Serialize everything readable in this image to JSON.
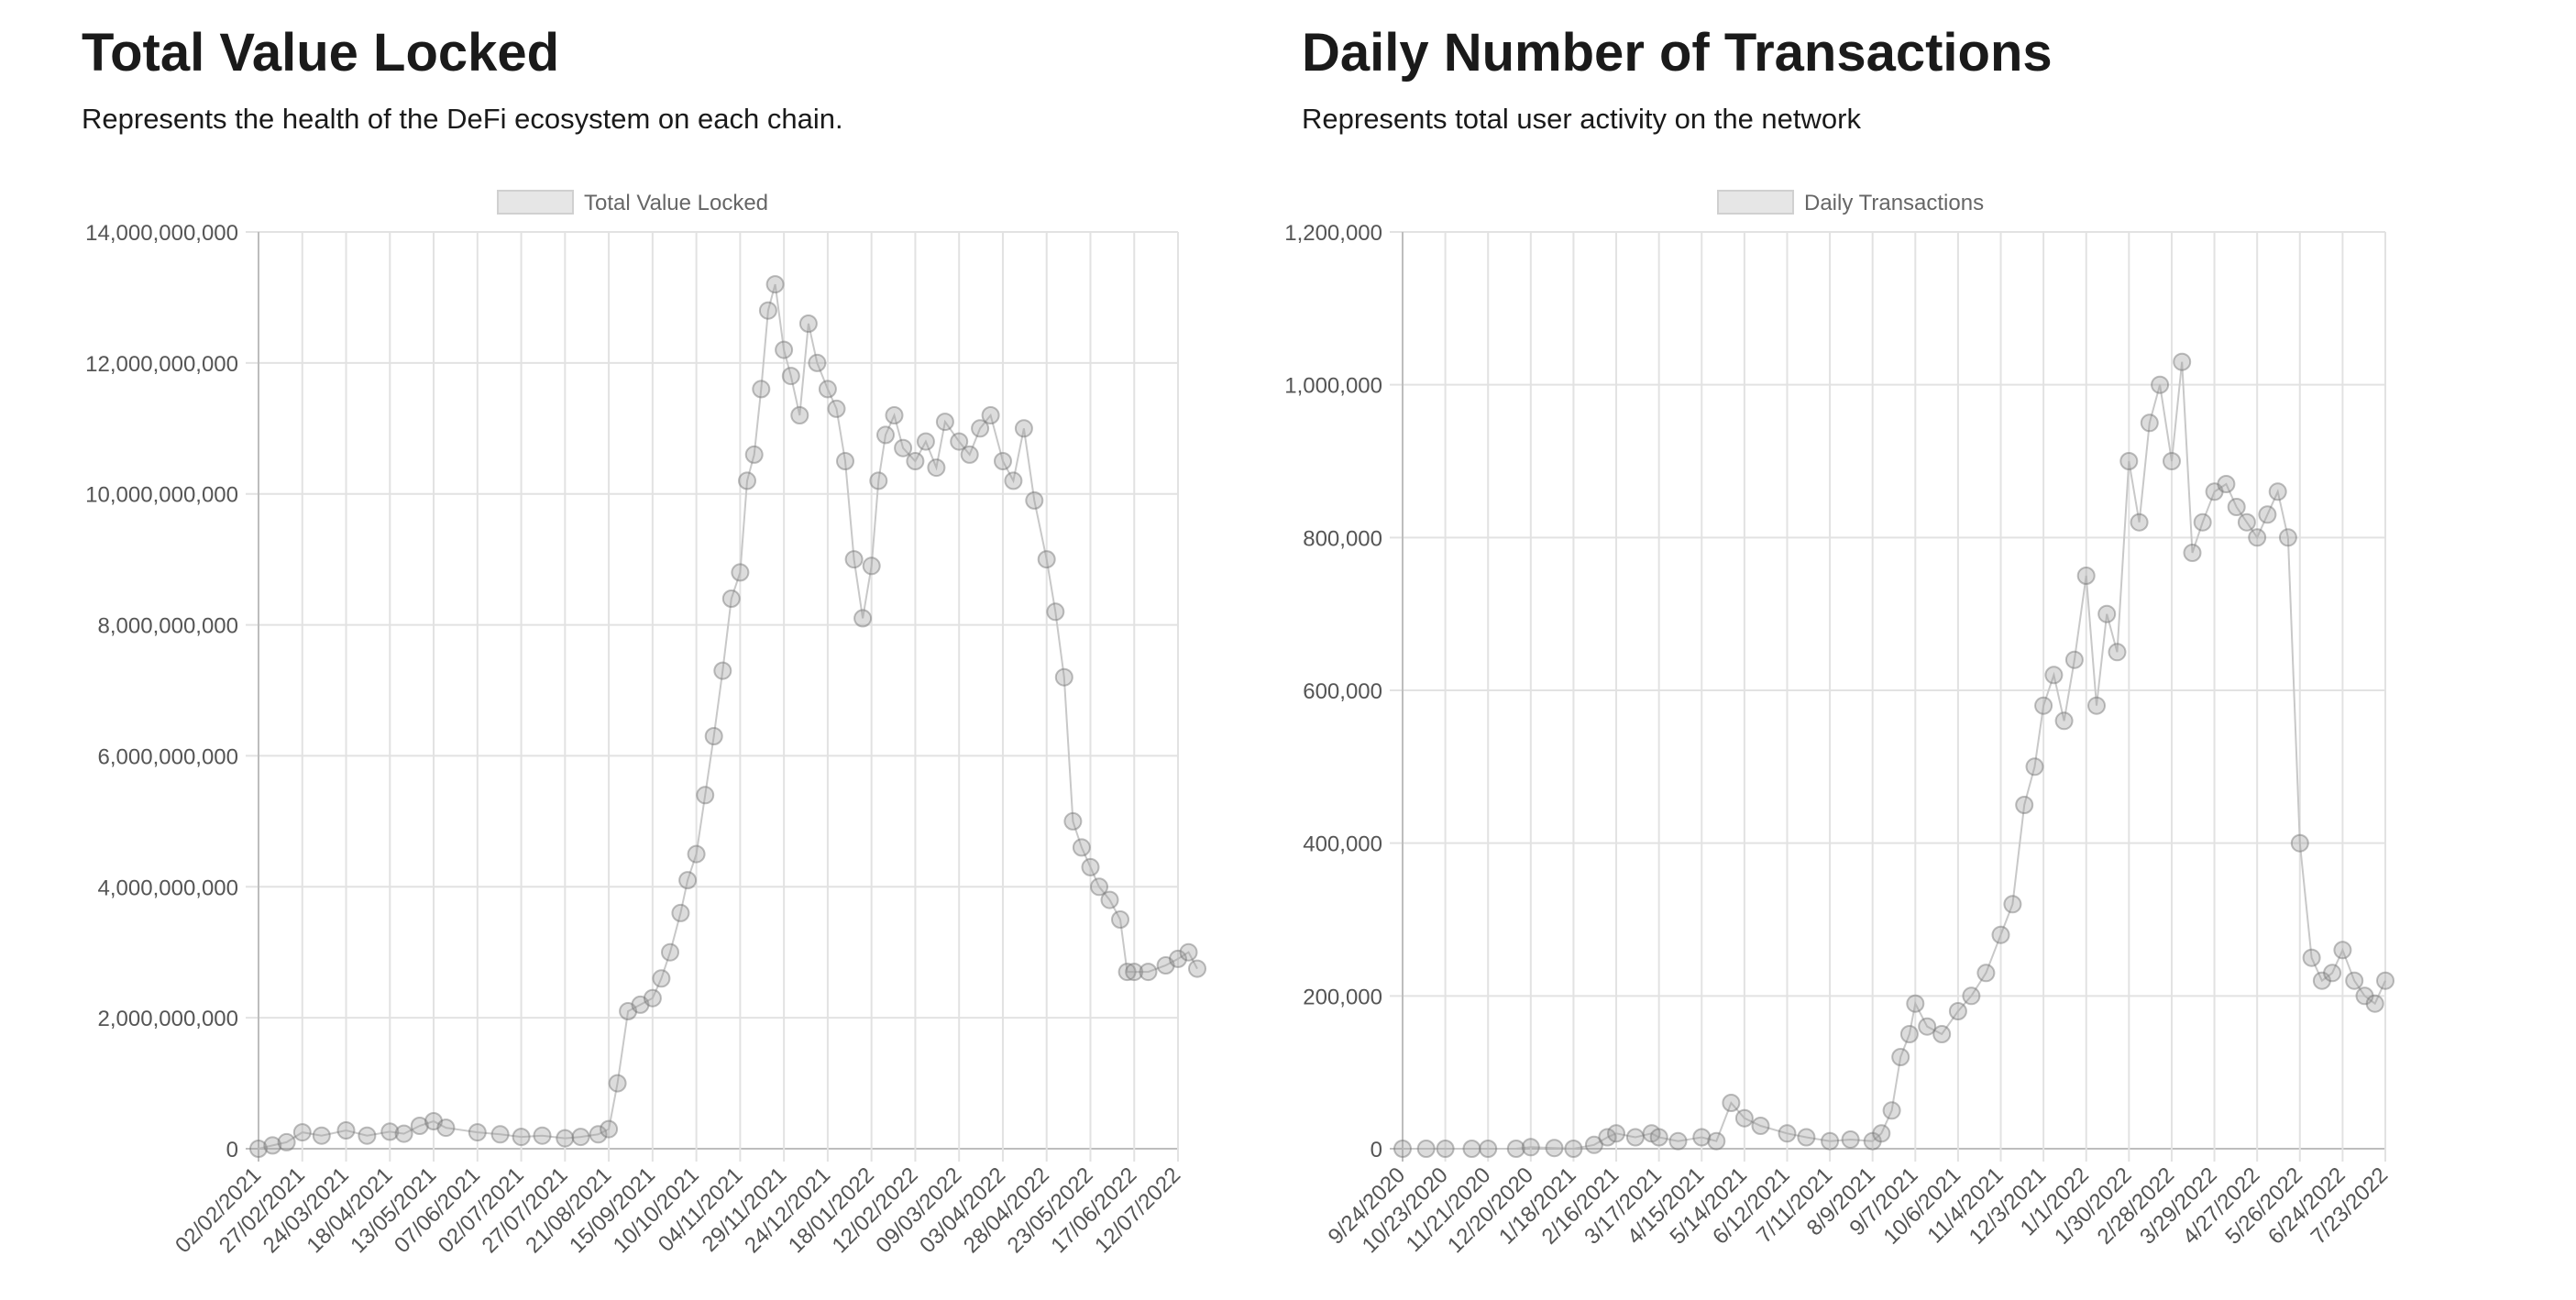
{
  "panels": [
    {
      "title": "Total Value Locked",
      "subtitle": "Represents the health of the DeFi ecosystem on each chain."
    },
    {
      "title": "Daily Number of Transactions",
      "subtitle": "Represents total user activity on the network"
    }
  ],
  "chart_data": [
    {
      "type": "scatter",
      "title": "",
      "legend": "top-center",
      "grid": true,
      "ylim": [
        0,
        14000000000
      ],
      "y_ticks": [
        "0",
        "2,000,000,000",
        "4,000,000,000",
        "6,000,000,000",
        "8,000,000,000",
        "10,000,000,000",
        "12,000,000,000",
        "14,000,000,000"
      ],
      "x_ticks": [
        "02/02/2021",
        "27/02/2021",
        "24/03/2021",
        "18/04/2021",
        "13/05/2021",
        "07/06/2021",
        "02/07/2021",
        "27/07/2021",
        "21/08/2021",
        "15/09/2021",
        "10/10/2021",
        "04/11/2021",
        "29/11/2021",
        "24/12/2021",
        "18/01/2022",
        "12/02/2022",
        "09/03/2022",
        "03/04/2022",
        "28/04/2022",
        "23/05/2022",
        "17/06/2022",
        "12/07/2022"
      ],
      "point_color": "#9a9a9a",
      "series": [
        {
          "name": "Total Value Locked",
          "x": [
            "02/02/2021",
            "10/02/2021",
            "18/02/2021",
            "27/02/2021",
            "10/03/2021",
            "24/03/2021",
            "05/04/2021",
            "18/04/2021",
            "26/04/2021",
            "05/05/2021",
            "13/05/2021",
            "20/05/2021",
            "07/06/2021",
            "20/06/2021",
            "02/07/2021",
            "14/07/2021",
            "27/07/2021",
            "05/08/2021",
            "15/08/2021",
            "21/08/2021",
            "26/08/2021",
            "01/09/2021",
            "08/09/2021",
            "15/09/2021",
            "20/09/2021",
            "25/09/2021",
            "01/10/2021",
            "05/10/2021",
            "10/10/2021",
            "15/10/2021",
            "20/10/2021",
            "25/10/2021",
            "30/10/2021",
            "04/11/2021",
            "08/11/2021",
            "12/11/2021",
            "16/11/2021",
            "20/11/2021",
            "24/11/2021",
            "29/11/2021",
            "03/12/2021",
            "08/12/2021",
            "13/12/2021",
            "18/12/2021",
            "24/12/2021",
            "29/12/2021",
            "03/01/2022",
            "08/01/2022",
            "13/01/2022",
            "18/01/2022",
            "22/01/2022",
            "26/01/2022",
            "31/01/2022",
            "05/02/2022",
            "12/02/2022",
            "18/02/2022",
            "24/02/2022",
            "01/03/2022",
            "09/03/2022",
            "15/03/2022",
            "21/03/2022",
            "27/03/2022",
            "03/04/2022",
            "09/04/2022",
            "15/04/2022",
            "21/04/2022",
            "28/04/2022",
            "03/05/2022",
            "08/05/2022",
            "13/05/2022",
            "18/05/2022",
            "23/05/2022",
            "28/05/2022",
            "03/06/2022",
            "09/06/2022",
            "13/06/2022",
            "17/06/2022",
            "25/06/2022",
            "05/07/2022",
            "12/07/2022",
            "18/07/2022",
            "23/07/2022"
          ],
          "y": [
            0,
            50000000,
            100000000,
            250000000,
            200000000,
            280000000,
            200000000,
            260000000,
            230000000,
            350000000,
            420000000,
            320000000,
            250000000,
            220000000,
            180000000,
            200000000,
            160000000,
            180000000,
            220000000,
            300000000,
            1000000000,
            2100000000,
            2200000000,
            2300000000,
            2600000000,
            3000000000,
            3600000000,
            4100000000,
            4500000000,
            5400000000,
            6300000000,
            7300000000,
            8400000000,
            8800000000,
            10200000000,
            10600000000,
            11600000000,
            12800000000,
            13200000000,
            12200000000,
            11800000000,
            11200000000,
            12600000000,
            12000000000,
            11600000000,
            11300000000,
            10500000000,
            9000000000,
            8100000000,
            8900000000,
            10200000000,
            10900000000,
            11200000000,
            10700000000,
            10500000000,
            10800000000,
            10400000000,
            11100000000,
            10800000000,
            10600000000,
            11000000000,
            11200000000,
            10500000000,
            10200000000,
            11000000000,
            9900000000,
            9000000000,
            8200000000,
            7200000000,
            5000000000,
            4600000000,
            4300000000,
            4000000000,
            3800000000,
            3500000000,
            2700000000,
            2700000000,
            2700000000,
            2800000000,
            2900000000,
            3000000000,
            2750000000
          ]
        }
      ]
    },
    {
      "type": "scatter",
      "title": "",
      "legend": "top-center",
      "grid": true,
      "ylim": [
        0,
        1200000
      ],
      "y_ticks": [
        "0",
        "200,000",
        "400,000",
        "600,000",
        "800,000",
        "1,000,000",
        "1,200,000"
      ],
      "x_ticks": [
        "9/24/2020",
        "10/23/2020",
        "11/21/2020",
        "12/20/2020",
        "1/18/2021",
        "2/16/2021",
        "3/17/2021",
        "4/15/2021",
        "5/14/2021",
        "6/12/2021",
        "7/11/2021",
        "8/9/2021",
        "9/7/2021",
        "10/6/2021",
        "11/4/2021",
        "12/3/2021",
        "1/1/2022",
        "1/30/2022",
        "2/28/2022",
        "3/29/2022",
        "4/27/2022",
        "5/26/2022",
        "6/24/2022",
        "7/23/2022"
      ],
      "point_color": "#9a9a9a",
      "series": [
        {
          "name": "Daily Transactions",
          "x": [
            "9/24/2020",
            "10/10/2020",
            "10/23/2020",
            "11/10/2020",
            "11/21/2020",
            "12/10/2020",
            "12/20/2020",
            "1/5/2021",
            "1/18/2021",
            "2/1/2021",
            "2/10/2021",
            "2/16/2021",
            "3/1/2021",
            "3/12/2021",
            "3/17/2021",
            "3/30/2021",
            "4/15/2021",
            "4/25/2021",
            "5/5/2021",
            "5/14/2021",
            "5/25/2021",
            "6/12/2021",
            "6/25/2021",
            "7/11/2021",
            "7/25/2021",
            "8/9/2021",
            "8/15/2021",
            "8/22/2021",
            "8/28/2021",
            "9/3/2021",
            "9/7/2021",
            "9/15/2021",
            "9/25/2021",
            "10/6/2021",
            "10/15/2021",
            "10/25/2021",
            "11/4/2021",
            "11/12/2021",
            "11/20/2021",
            "11/27/2021",
            "12/3/2021",
            "12/10/2021",
            "12/17/2021",
            "12/24/2021",
            "1/1/2022",
            "1/8/2022",
            "1/15/2022",
            "1/22/2022",
            "1/30/2022",
            "2/6/2022",
            "2/13/2022",
            "2/20/2022",
            "2/28/2022",
            "3/7/2022",
            "3/14/2022",
            "3/21/2022",
            "3/29/2022",
            "4/6/2022",
            "4/13/2022",
            "4/20/2022",
            "4/27/2022",
            "5/4/2022",
            "5/11/2022",
            "5/18/2022",
            "5/26/2022",
            "6/3/2022",
            "6/10/2022",
            "6/17/2022",
            "6/24/2022",
            "7/2/2022",
            "7/9/2022",
            "7/16/2022",
            "7/23/2022"
          ],
          "y": [
            0,
            0,
            0,
            0,
            0,
            0,
            2000,
            1000,
            0,
            5000,
            15000,
            20000,
            15000,
            20000,
            15000,
            10000,
            15000,
            10000,
            60000,
            40000,
            30000,
            20000,
            15000,
            10000,
            12000,
            10000,
            20000,
            50000,
            120000,
            150000,
            190000,
            160000,
            150000,
            180000,
            200000,
            230000,
            280000,
            320000,
            450000,
            500000,
            580000,
            620000,
            560000,
            640000,
            750000,
            580000,
            700000,
            650000,
            900000,
            820000,
            950000,
            1000000,
            900000,
            1030000,
            780000,
            820000,
            860000,
            870000,
            840000,
            820000,
            800000,
            830000,
            860000,
            800000,
            400000,
            250000,
            220000,
            230000,
            260000,
            220000,
            200000,
            190000,
            220000
          ]
        }
      ]
    }
  ]
}
